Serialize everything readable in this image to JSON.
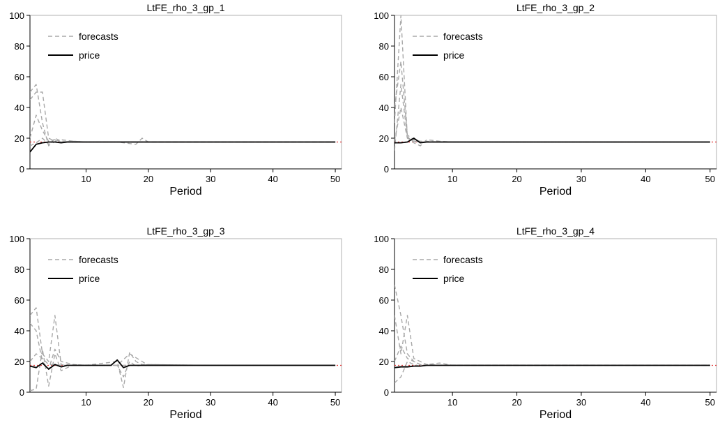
{
  "chart_data": [
    {
      "type": "line",
      "title": "LtFE_rho_3_gp_1",
      "xlabel": "Period",
      "ylabel": "",
      "xlim": [
        1,
        51
      ],
      "ylim": [
        0,
        100
      ],
      "xticks": [
        10,
        20,
        30,
        40,
        50
      ],
      "yticks": [
        0,
        20,
        40,
        60,
        80,
        100
      ],
      "legend": {
        "placement": "top-left",
        "entries": [
          "forecasts",
          "price"
        ]
      },
      "reference": {
        "value": 17.5,
        "color": "#e03030"
      },
      "series": [
        {
          "name": "price",
          "color": "#000000",
          "dash": "solid",
          "x": [
            1,
            2,
            3,
            4,
            5,
            6,
            7,
            8,
            9,
            10,
            12,
            15,
            18,
            20,
            25,
            30,
            35,
            40,
            45,
            50
          ],
          "y": [
            11,
            16,
            17,
            17.5,
            17.5,
            17,
            17.5,
            17.5,
            17.5,
            17.5,
            17.5,
            17.5,
            17.5,
            17.5,
            17.5,
            17.5,
            17.5,
            17.5,
            17.5,
            17.5
          ]
        },
        {
          "name": "forecasts",
          "color": "#a8a8a8",
          "dash": "dashed",
          "x": [
            1,
            2,
            3,
            4,
            5,
            6,
            8,
            10,
            15,
            20,
            30,
            40,
            50
          ],
          "y": [
            50,
            55,
            30,
            15,
            20,
            18,
            17.5,
            17.5,
            17.5,
            17.5,
            17.5,
            17.5,
            17.5
          ]
        },
        {
          "name": "forecasts",
          "color": "#a8a8a8",
          "dash": "dashed",
          "x": [
            1,
            2,
            3,
            4,
            5,
            6,
            8,
            10,
            15,
            20,
            30,
            40,
            50
          ],
          "y": [
            45,
            50,
            50,
            20,
            18,
            19,
            18,
            17.5,
            17.5,
            17.5,
            17.5,
            17.5,
            17.5
          ]
        },
        {
          "name": "forecasts",
          "color": "#a8a8a8",
          "dash": "dashed",
          "x": [
            1,
            2,
            3,
            4,
            5,
            6,
            8,
            10,
            15,
            18,
            19,
            20,
            30,
            40,
            50
          ],
          "y": [
            20,
            35,
            25,
            18,
            19,
            17.5,
            18,
            17.5,
            17.5,
            16,
            20,
            17.5,
            17.5,
            17.5,
            17.5
          ]
        },
        {
          "name": "forecasts",
          "color": "#a8a8a8",
          "dash": "dashed",
          "x": [
            1,
            2,
            3,
            4,
            5,
            6,
            8,
            10,
            15,
            20,
            30,
            40,
            50
          ],
          "y": [
            15,
            17,
            20,
            16,
            17.5,
            17.5,
            17.5,
            17.5,
            17.5,
            17.5,
            17.5,
            17.5,
            17.5
          ]
        }
      ]
    },
    {
      "type": "line",
      "title": "LtFE_rho_3_gp_2",
      "xlabel": "Period",
      "ylabel": "",
      "xlim": [
        1,
        51
      ],
      "ylim": [
        0,
        100
      ],
      "xticks": [
        10,
        20,
        30,
        40,
        50
      ],
      "yticks": [
        0,
        20,
        40,
        60,
        80,
        100
      ],
      "legend": {
        "placement": "top-left",
        "entries": [
          "forecasts",
          "price"
        ]
      },
      "reference": {
        "value": 17.5,
        "color": "#e03030"
      },
      "series": [
        {
          "name": "price",
          "color": "#000000",
          "dash": "solid",
          "x": [
            1,
            2,
            3,
            4,
            5,
            6,
            8,
            10,
            15,
            20,
            30,
            40,
            50
          ],
          "y": [
            17,
            17,
            17.5,
            20,
            17,
            17.5,
            17.5,
            17.5,
            17.5,
            17.5,
            17.5,
            17.5,
            17.5
          ]
        },
        {
          "name": "forecasts",
          "color": "#a8a8a8",
          "dash": "dashed",
          "x": [
            1,
            2,
            3,
            4,
            5,
            6,
            8,
            10,
            15,
            20,
            30,
            40,
            50
          ],
          "y": [
            30,
            100,
            20,
            18,
            17.5,
            17.5,
            17.5,
            17.5,
            17.5,
            17.5,
            17.5,
            17.5,
            17.5
          ]
        },
        {
          "name": "forecasts",
          "color": "#a8a8a8",
          "dash": "dashed",
          "x": [
            1,
            2,
            3,
            4,
            5,
            6,
            8,
            10,
            15,
            20,
            30,
            40,
            50
          ],
          "y": [
            40,
            70,
            22,
            19,
            18,
            17.5,
            17.5,
            17.5,
            17.5,
            17.5,
            17.5,
            17.5,
            17.5
          ]
        },
        {
          "name": "forecasts",
          "color": "#a8a8a8",
          "dash": "dashed",
          "x": [
            1,
            2,
            3,
            4,
            5,
            6,
            8,
            10,
            15,
            20,
            30,
            40,
            50
          ],
          "y": [
            12,
            55,
            21,
            17,
            15,
            19,
            18,
            17.5,
            17.5,
            17.5,
            17.5,
            17.5,
            17.5
          ]
        },
        {
          "name": "forecasts",
          "color": "#a8a8a8",
          "dash": "dashed",
          "x": [
            1,
            2,
            3,
            4,
            5,
            6,
            8,
            10,
            15,
            20,
            30,
            40,
            50
          ],
          "y": [
            18,
            40,
            20,
            18,
            18,
            18,
            17.5,
            17.5,
            17.5,
            17.5,
            17.5,
            17.5,
            17.5
          ]
        }
      ]
    },
    {
      "type": "line",
      "title": "LtFE_rho_3_gp_3",
      "xlabel": "Period",
      "ylabel": "",
      "xlim": [
        1,
        51
      ],
      "ylim": [
        0,
        100
      ],
      "xticks": [
        10,
        20,
        30,
        40,
        50
      ],
      "yticks": [
        0,
        20,
        40,
        60,
        80,
        100
      ],
      "legend": {
        "placement": "top-left",
        "entries": [
          "forecasts",
          "price"
        ]
      },
      "reference": {
        "value": 17.5,
        "color": "#e03030"
      },
      "series": [
        {
          "name": "price",
          "color": "#000000",
          "dash": "solid",
          "x": [
            1,
            2,
            3,
            4,
            5,
            6,
            7,
            8,
            10,
            12,
            14,
            15,
            16,
            17,
            18,
            20,
            30,
            40,
            50
          ],
          "y": [
            17,
            16,
            19,
            15,
            18,
            16.5,
            17.5,
            17.5,
            17.5,
            17.5,
            17.5,
            21,
            16,
            17.5,
            17.5,
            17.5,
            17.5,
            17.5,
            17.5
          ]
        },
        {
          "name": "forecasts",
          "color": "#a8a8a8",
          "dash": "dashed",
          "x": [
            1,
            2,
            3,
            4,
            5,
            6,
            8,
            10,
            15,
            20,
            30,
            40,
            50
          ],
          "y": [
            50,
            55,
            25,
            20,
            50,
            18,
            17.5,
            17.5,
            17.5,
            17.5,
            17.5,
            17.5,
            17.5
          ]
        },
        {
          "name": "forecasts",
          "color": "#a8a8a8",
          "dash": "dashed",
          "x": [
            1,
            2,
            3,
            4,
            5,
            6,
            8,
            10,
            15,
            16,
            17,
            18,
            19,
            20,
            30,
            40,
            50
          ],
          "y": [
            1,
            2,
            28,
            4,
            25,
            14,
            18,
            17.5,
            20,
            3,
            26,
            20,
            18,
            18,
            17.5,
            17.5,
            17.5
          ]
        },
        {
          "name": "forecasts",
          "color": "#a8a8a8",
          "dash": "dashed",
          "x": [
            1,
            2,
            3,
            4,
            5,
            6,
            8,
            10,
            15,
            16,
            17,
            18,
            20,
            30,
            40,
            50
          ],
          "y": [
            45,
            40,
            20,
            15,
            28,
            20,
            18,
            17.5,
            17.5,
            10,
            20,
            17,
            18,
            17.5,
            17.5,
            17.5
          ]
        },
        {
          "name": "forecasts",
          "color": "#a8a8a8",
          "dash": "dashed",
          "x": [
            1,
            2,
            3,
            4,
            5,
            6,
            8,
            10,
            15,
            17,
            20,
            30,
            40,
            50
          ],
          "y": [
            20,
            25,
            22,
            18,
            18,
            17.5,
            17.5,
            17.5,
            17.5,
            25,
            17.5,
            17.5,
            17.5,
            17.5
          ]
        }
      ]
    },
    {
      "type": "line",
      "title": "LtFE_rho_3_gp_4",
      "xlabel": "Period",
      "ylabel": "",
      "xlim": [
        1,
        51
      ],
      "ylim": [
        0,
        100
      ],
      "xticks": [
        10,
        20,
        30,
        40,
        50
      ],
      "yticks": [
        0,
        20,
        40,
        60,
        80,
        100
      ],
      "legend": {
        "placement": "top-left",
        "entries": [
          "forecasts",
          "price"
        ]
      },
      "reference": {
        "value": 17.5,
        "color": "#e03030"
      },
      "series": [
        {
          "name": "price",
          "color": "#000000",
          "dash": "solid",
          "x": [
            1,
            2,
            3,
            4,
            5,
            6,
            8,
            10,
            15,
            20,
            30,
            40,
            50
          ],
          "y": [
            16,
            16.5,
            16.5,
            17,
            17,
            17.5,
            17.5,
            17.5,
            17.5,
            17.5,
            17.5,
            17.5,
            17.5
          ]
        },
        {
          "name": "forecasts",
          "color": "#a8a8a8",
          "dash": "dashed",
          "x": [
            1,
            2,
            3,
            4,
            5,
            6,
            8,
            10,
            15,
            20,
            30,
            40,
            50
          ],
          "y": [
            70,
            50,
            25,
            20,
            18,
            18,
            17.5,
            17.5,
            17.5,
            17.5,
            17.5,
            17.5,
            17.5
          ]
        },
        {
          "name": "forecasts",
          "color": "#a8a8a8",
          "dash": "dashed",
          "x": [
            1,
            2,
            3,
            4,
            5,
            6,
            8,
            10,
            15,
            20,
            30,
            40,
            50
          ],
          "y": [
            50,
            25,
            50,
            22,
            20,
            18,
            17.5,
            17.5,
            17.5,
            17.5,
            17.5,
            17.5,
            17.5
          ]
        },
        {
          "name": "forecasts",
          "color": "#a8a8a8",
          "dash": "dashed",
          "x": [
            1,
            2,
            3,
            4,
            5,
            6,
            8,
            10,
            15,
            20,
            30,
            40,
            50
          ],
          "y": [
            6,
            10,
            20,
            18,
            17,
            18,
            19,
            17.5,
            17.5,
            17.5,
            17.5,
            17.5,
            17.5
          ]
        },
        {
          "name": "forecasts",
          "color": "#a8a8a8",
          "dash": "dashed",
          "x": [
            1,
            2,
            3,
            4,
            5,
            6,
            8,
            10,
            15,
            20,
            30,
            40,
            50
          ],
          "y": [
            20,
            30,
            22,
            20,
            18,
            17.5,
            17.5,
            17.5,
            17.5,
            17.5,
            17.5,
            17.5,
            17.5
          ]
        }
      ]
    }
  ]
}
